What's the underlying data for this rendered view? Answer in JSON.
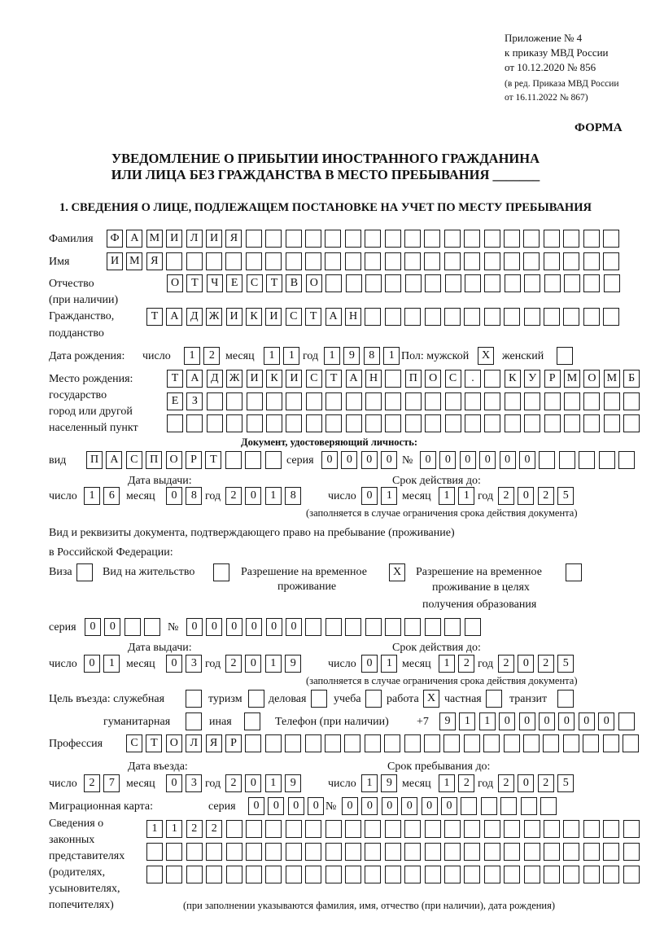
{
  "header": {
    "line1": "Приложение № 4",
    "line2": "к приказу МВД России",
    "line3": "от 10.12.2020 № 856",
    "line4": "(в ред. Приказа МВД России",
    "line5": "от 16.11.2022 № 867)"
  },
  "forma": "ФОРМА",
  "title_line1": "УВЕДОМЛЕНИЕ О ПРИБЫТИИ ИНОСТРАННОГО ГРАЖДАНИНА",
  "title_line2": "ИЛИ ЛИЦА БЕЗ ГРАЖДАНСТВА В МЕСТО ПРЕБЫВАНИЯ _______",
  "section1": "1. СВЕДЕНИЯ О ЛИЦЕ, ПОДЛЕЖАЩЕМ ПОСТАНОВКЕ НА УЧЕТ ПО МЕСТУ ПРЕБЫВАНИЯ",
  "person": {
    "surname_label": "Фамилия",
    "surname": "ФАМИЛИЯ",
    "name_label": "Имя",
    "name": "ИМЯ",
    "patronymic_label1": "Отчество",
    "patronymic_label2": "(при наличии)",
    "patronymic": "ОТЧЕСТВО",
    "citizenship_label1": "Гражданство,",
    "citizenship_label2": "подданство",
    "citizenship": "ТАДЖИКИСТАН",
    "birth_label": "Дата рождения:",
    "day_label": "число",
    "month_label": "месяц",
    "year_label": "год",
    "birth_day": "12",
    "birth_month": "11",
    "birth_year": "1981",
    "sex_label": "Пол: мужской",
    "sex_male": "X",
    "female_label": "женский",
    "sex_female": "",
    "birthplace_label1": "Место рождения:",
    "birthplace_label2": "государство",
    "birthplace_label3": "город или другой",
    "birthplace_label4": "населенный пункт",
    "birthplace_row1": "ТАДЖИКИСТАН ПОС. КУРМОМБ",
    "birthplace_row2": "ЕЗ",
    "birthplace_row3": ""
  },
  "id_doc": {
    "title": "Документ, удостоверяющий личность:",
    "type_label": "вид",
    "type": "ПАСПОРТ",
    "series_label": "серия",
    "series": "0000",
    "number_label": "№",
    "number": "000000",
    "issue_label": "Дата выдачи:",
    "valid_label": "Срок действия до:",
    "day_label": "число",
    "month_label": "месяц",
    "year_label": "год",
    "issue_day": "16",
    "issue_month": "08",
    "issue_year": "2018",
    "valid_day": "01",
    "valid_month": "11",
    "valid_year": "2025",
    "note": "(заполняется в случае ограничения срока действия документа)"
  },
  "stay_doc": {
    "label1": "Вид и реквизиты документа, подтверждающего право на пребывание (проживание)",
    "label2": "в Российской Федерации:",
    "visa_label": "Виза",
    "visa": "",
    "residence_label": "Вид на жительство",
    "residence": "",
    "temp_label1": "Разрешение на временное",
    "temp_label2": "проживание",
    "temp": "X",
    "temp_edu_label1": "Разрешение на временное",
    "temp_edu_label2": "проживание в целях",
    "temp_edu_label3": "получения образования",
    "temp_edu": "",
    "series_label": "серия",
    "series": "00",
    "number_label": "№",
    "number": "000000",
    "issue_label": "Дата выдачи:",
    "valid_label": "Срок действия до:",
    "day_label": "число",
    "month_label": "месяц",
    "year_label": "год",
    "issue_day": "01",
    "issue_month": "03",
    "issue_year": "2019",
    "valid_day": "01",
    "valid_month": "12",
    "valid_year": "2025",
    "note": "(заполняется в случае ограничения срока действия документа)"
  },
  "purpose": {
    "label": "Цель въезда: служебная",
    "official": "",
    "tourism_label": "туризм",
    "tourism": "",
    "business_label": "деловая",
    "business": "",
    "study_label": "учеба",
    "study": "",
    "work_label": "работа",
    "work": "X",
    "private_label": "частная",
    "private": "",
    "transit_label": "транзит",
    "transit": "",
    "humanitarian_label": "гуманитарная",
    "humanitarian": "",
    "other_label": "иная",
    "other": ""
  },
  "phone": {
    "label": "Телефон (при наличии)",
    "prefix": "+7",
    "value": "911000000"
  },
  "profession": {
    "label": "Профессия",
    "value": "СТОЛЯР"
  },
  "entry": {
    "entry_label": "Дата въезда:",
    "stay_until_label": "Срок пребывания до:",
    "day_label": "число",
    "month_label": "месяц",
    "year_label": "год",
    "entry_day": "27",
    "entry_month": "03",
    "entry_year": "2019",
    "until_day": "19",
    "until_month": "12",
    "until_year": "2025"
  },
  "migration_card": {
    "label": "Миграционная карта:",
    "series_label": "серия",
    "series": "0000",
    "number_label": "№",
    "number": "000000"
  },
  "representatives": {
    "label1": "Сведения о",
    "label2": "законных",
    "label3": "представителях",
    "label4": "(родителях,",
    "label5": "усыновителях,",
    "label6": "попечителях)",
    "row1": "1122",
    "row2": "",
    "row3": "",
    "note": "(при заполнении указываются фамилия, имя, отчество (при наличии), дата рождения)"
  }
}
